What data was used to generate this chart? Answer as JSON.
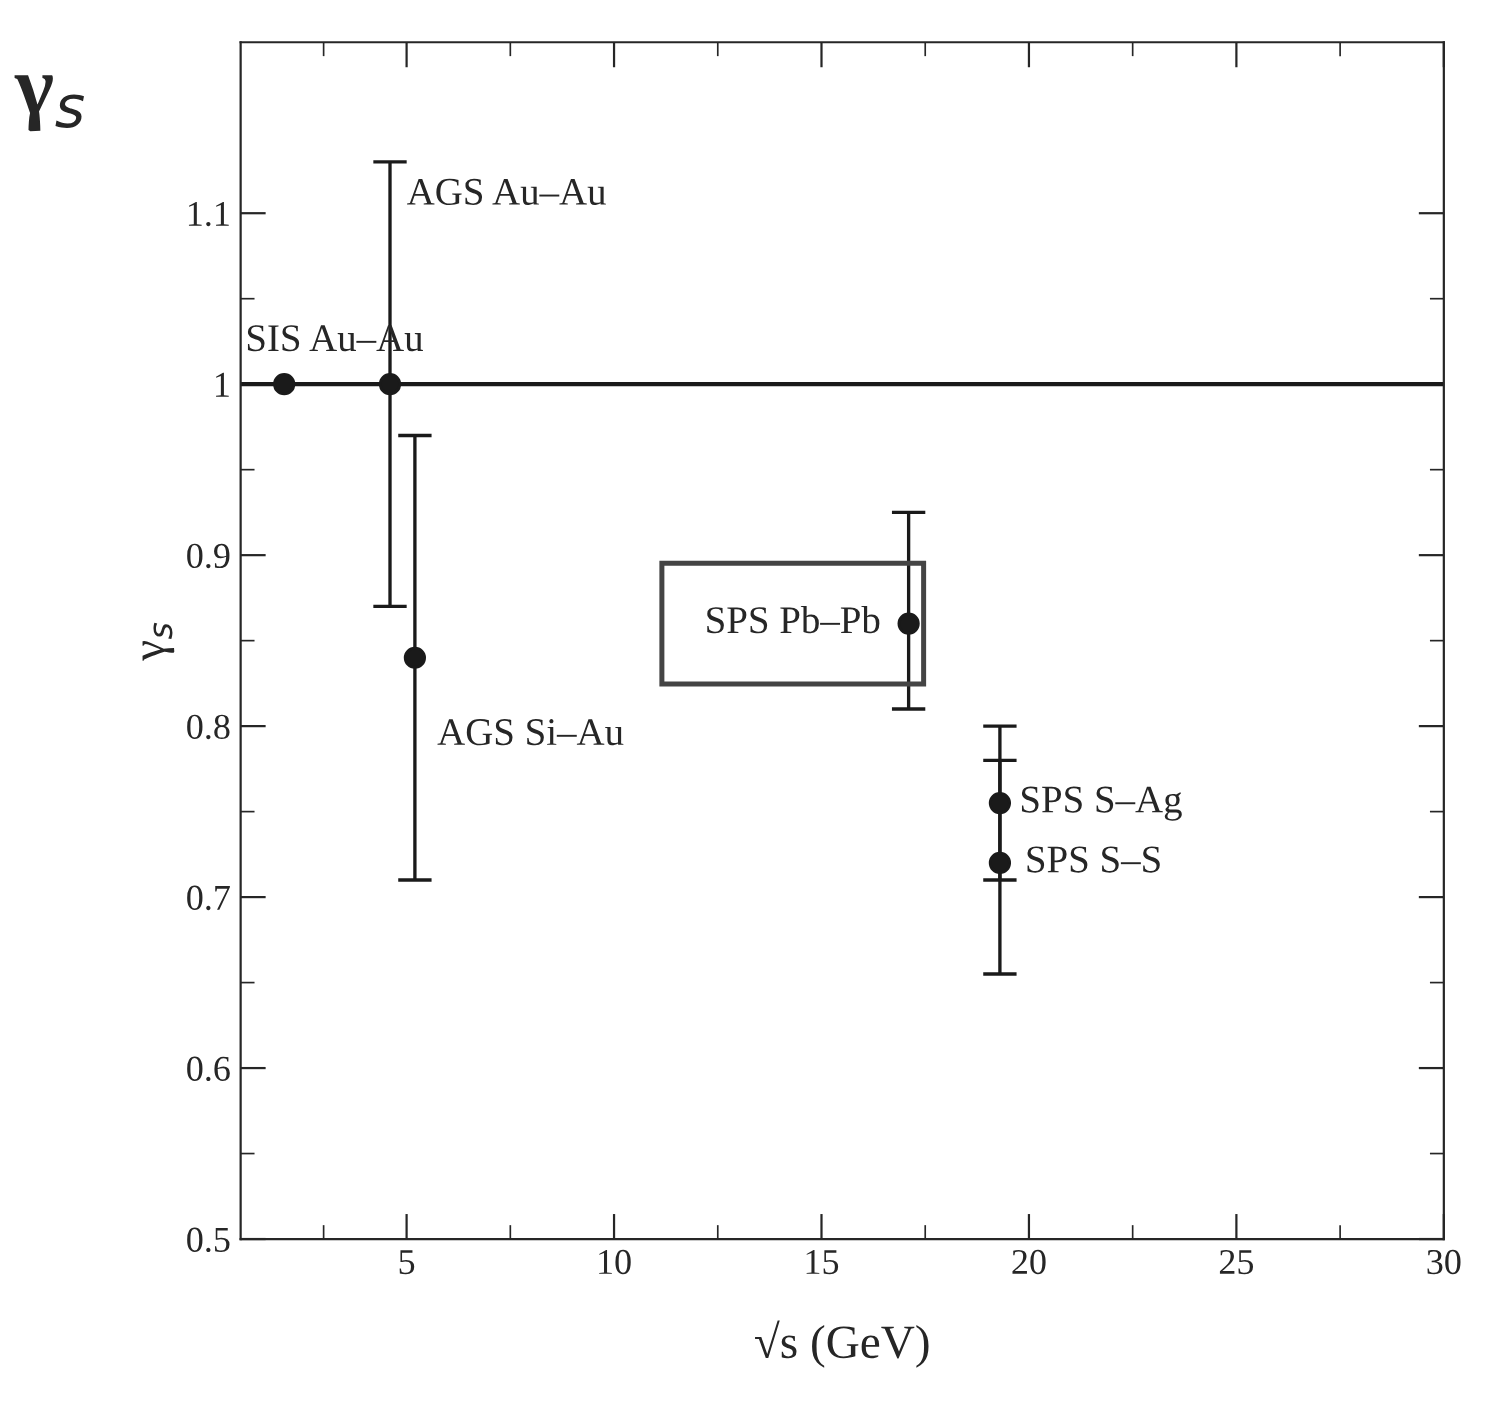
{
  "chart_data": {
    "type": "scatter",
    "title": "γ$_{s}$",
    "xlabel": "√s (GeV)",
    "ylabel": "γ$_{s}$",
    "x": [
      2.05,
      4.6,
      5.2,
      17.1,
      19.3,
      19.3
    ],
    "series": [
      {
        "color": "#1a1a1a",
        "values": [
          1.0,
          1.0,
          0.84,
          0.86,
          0.755,
          0.72
        ],
        "errors": [
          null,
          0.13,
          0.13,
          [
            0.81,
            0.925
          ],
          0.045,
          [
            0.655,
            0.78
          ]
        ]
      }
    ],
    "marker": "circle",
    "xlim": [
      1,
      30
    ],
    "xticks": [
      5,
      10,
      15,
      20,
      25,
      30
    ],
    "ylim": [
      0.5,
      1.2
    ],
    "yticks": [
      0.5,
      0.6,
      0.7,
      0.8,
      0.9,
      {
        "value": 1.0,
        "label": "1"
      },
      1.1
    ],
    "ref_lines": [
      {
        "axis": "y",
        "value": 1.0,
        "color": "#1a1a1a"
      }
    ],
    "annotations": [
      {
        "text": "SIS Au–Au",
        "x": 2.05,
        "y": 1.0
      },
      {
        "text": "AGS Au–Au",
        "x": 4.6,
        "y": 1.13
      },
      {
        "text": "AGS Si–Au",
        "x": 5.2,
        "y": 0.84
      },
      {
        "text": "SPS Pb–Pb",
        "x": 17.1,
        "y": 0.86
      },
      {
        "text": "SPS S–Ag",
        "x": 19.3,
        "y": 0.755
      },
      {
        "text": "SPS S–S",
        "x": 19.3,
        "y": 0.72
      }
    ],
    "grid": false,
    "legend": false
  }
}
